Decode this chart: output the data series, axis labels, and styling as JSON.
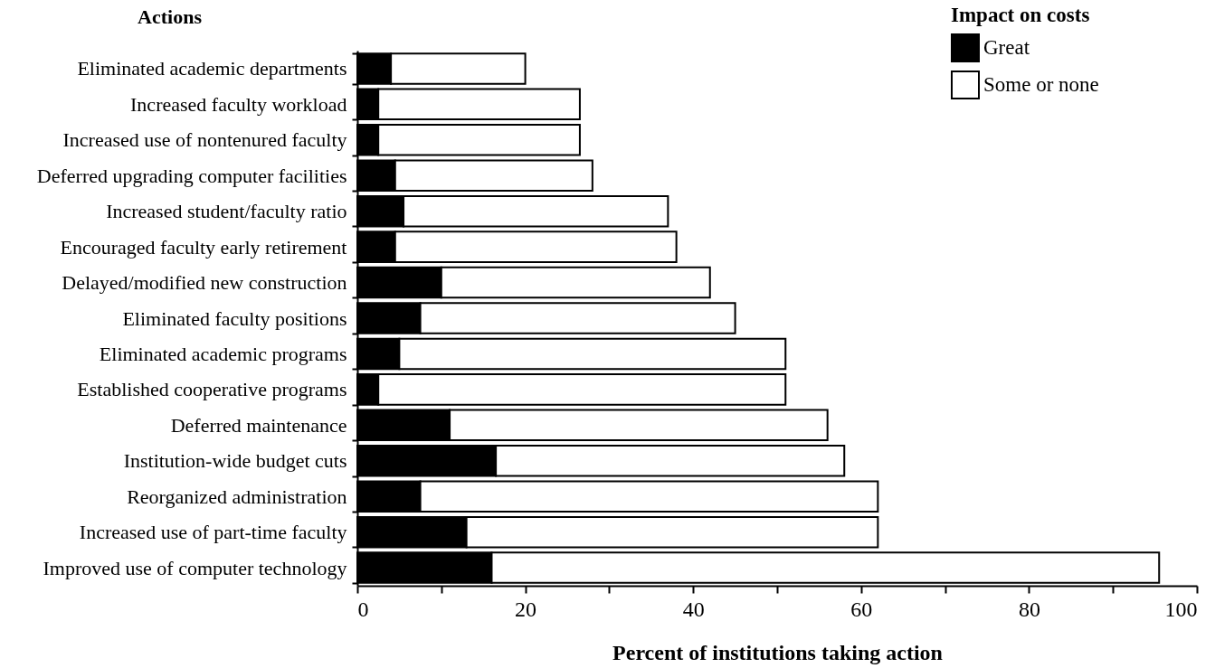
{
  "chart_data": {
    "type": "bar",
    "orientation": "horizontal",
    "stacked": true,
    "ylabel": "Actions",
    "xlabel": "Percent of institutions taking action",
    "legend_title": "Impact on costs",
    "categories": [
      "Eliminated academic departments",
      "Increased faculty workload",
      "Increased use of nontenured faculty",
      "Deferred upgrading computer facilities",
      "Increased student/faculty ratio",
      "Encouraged faculty early retirement",
      "Delayed/modified new construction",
      "Eliminated faculty positions",
      "Eliminated academic programs",
      "Established cooperative programs",
      "Deferred maintenance",
      "Institution-wide budget cuts",
      "Reorganized administration",
      "Increased use of part-time faculty",
      "Improved use of computer technology"
    ],
    "series": [
      {
        "name": "Great",
        "color": "#000000",
        "values": [
          4,
          2.5,
          2.5,
          4.5,
          5.5,
          4.5,
          10,
          7.5,
          5,
          2.5,
          11,
          16.5,
          7.5,
          13,
          16
        ]
      },
      {
        "name": "Some or none",
        "color": "#ffffff",
        "values": [
          16,
          24,
          24,
          23.5,
          31.5,
          33.5,
          32,
          37.5,
          46,
          48.5,
          45,
          41.5,
          54.5,
          49,
          79.5
        ]
      }
    ],
    "xlim": [
      0,
      100
    ],
    "xticks": [
      0,
      {
        "value": 10,
        "label": null
      },
      20,
      {
        "value": 30,
        "label": null
      },
      40,
      {
        "value": 50,
        "label": null
      },
      60,
      {
        "value": 70,
        "label": null
      },
      80,
      {
        "value": 90,
        "label": null
      },
      100
    ],
    "grid": false,
    "legend": "top right"
  }
}
